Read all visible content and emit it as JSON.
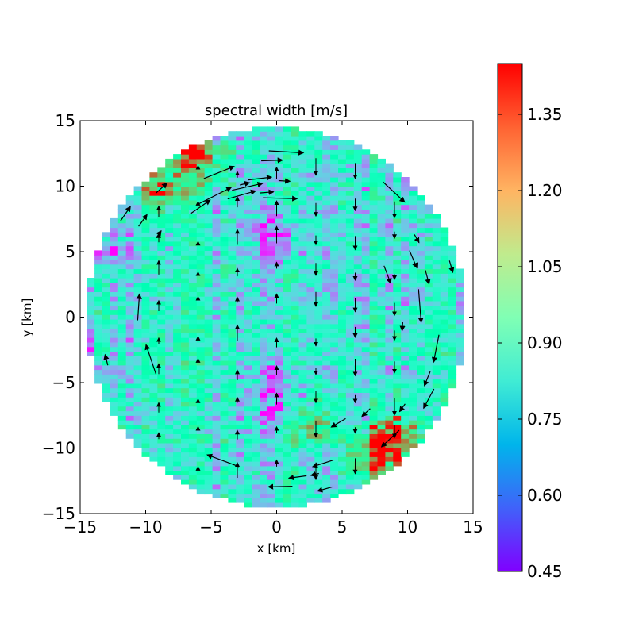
{
  "chart_data": {
    "type": "heatmap",
    "title": "spectral width [m/s]",
    "xlabel": "x [km]",
    "ylabel": "y [km]",
    "xlim": [
      -15,
      15
    ],
    "ylim": [
      -15,
      15
    ],
    "xticks": [
      -15,
      -10,
      -5,
      0,
      5,
      10,
      15
    ],
    "yticks": [
      -15,
      -10,
      -5,
      0,
      5,
      10,
      15
    ],
    "domain_radius_km": 14.5,
    "colorbar": {
      "colormap": "rainbow",
      "range": [
        0.45,
        1.45
      ],
      "ticks": [
        0.45,
        0.6,
        0.75,
        0.9,
        1.05,
        1.2,
        1.35
      ],
      "tick_labels": [
        "0.45",
        "0.60",
        "0.75",
        "0.90",
        "1.05",
        "1.20",
        "1.35"
      ]
    },
    "grid": false,
    "overlay": "wind vector arrows (black), circulating clockwise around the domain edge",
    "high_value_regions": [
      {
        "x": -6,
        "y": 12,
        "value": 1.38
      },
      {
        "x": -9,
        "y": 10,
        "value": 1.25
      },
      {
        "x": 7.5,
        "y": -10.5,
        "value": 1.42
      },
      {
        "x": 9,
        "y": -9,
        "value": 1.35
      },
      {
        "x": 3,
        "y": -8,
        "value": 1.15
      }
    ],
    "low_value_regions": [
      {
        "x": -14,
        "y": -3.5,
        "value": 0.6
      },
      {
        "x": 0,
        "y": 6,
        "value": 0.55
      },
      {
        "x": 0,
        "y": -5.5,
        "value": 0.5
      },
      {
        "x": -13,
        "y": 5,
        "value": 0.6
      }
    ]
  }
}
